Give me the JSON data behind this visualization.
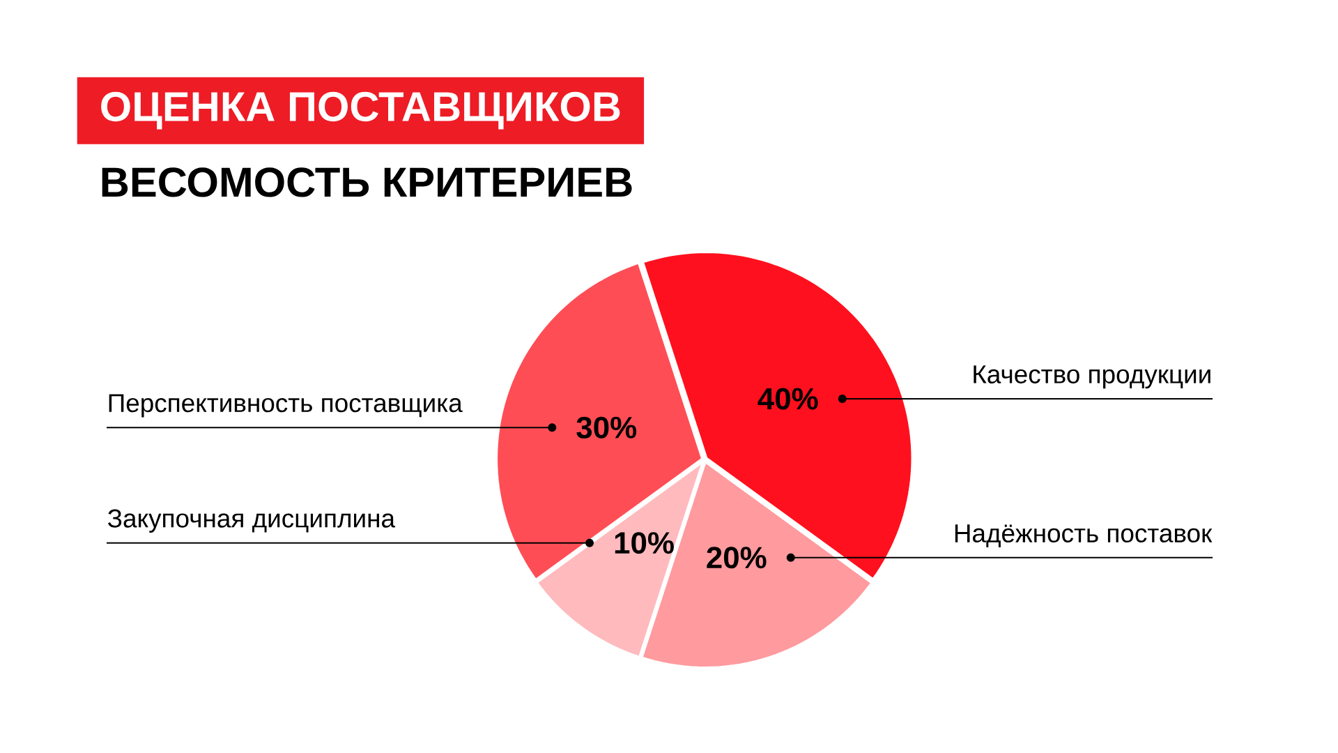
{
  "chart_data": {
    "type": "pie",
    "title": "ОЦЕНКА ПОСТАВЩИКОВ",
    "subtitle": "ВЕСОМОСТЬ КРИТЕРИЕВ",
    "categories": [
      "Качество продукции",
      "Надёжность поставок",
      "Закупочная дисциплина",
      "Перспективность поставщика"
    ],
    "values": [
      40,
      20,
      10,
      30
    ],
    "colors": [
      "#ff101e",
      "#ff9a9e",
      "#ffbabd",
      "#ff4d55"
    ],
    "value_labels": [
      "40%",
      "20%",
      "10%",
      "30%"
    ]
  }
}
